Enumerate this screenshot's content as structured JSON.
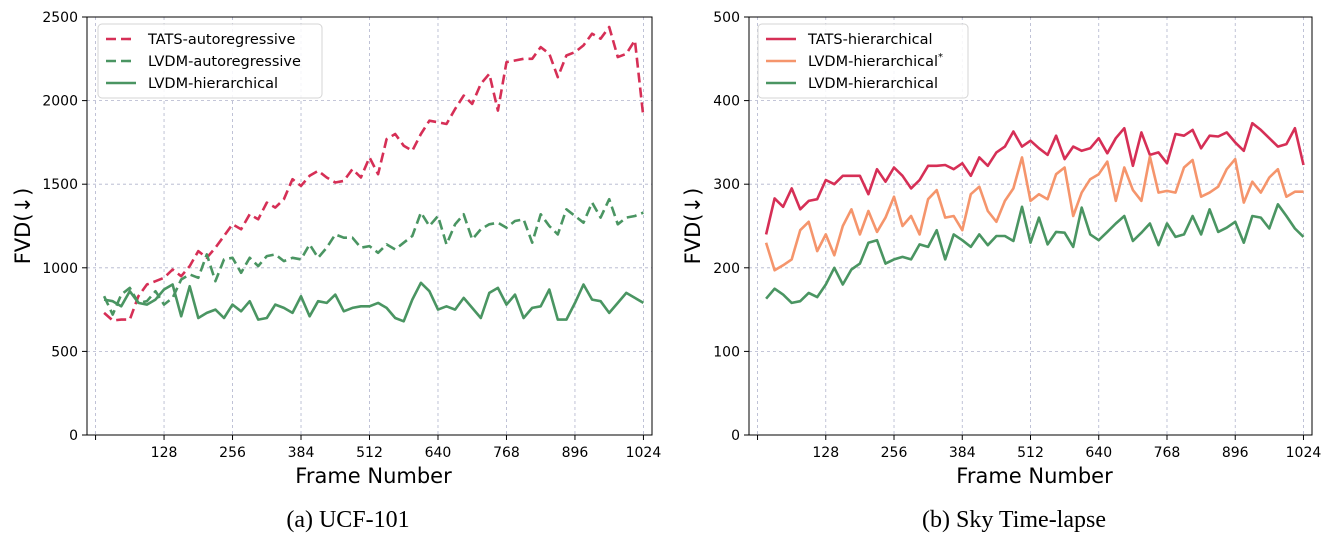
{
  "chart_data": [
    {
      "type": "line",
      "caption": "(a) UCF-101",
      "xlabel": "Frame Number",
      "ylabel": "FVD(↓)",
      "xlim": [
        -16,
        1040
      ],
      "ylim": [
        0,
        2500
      ],
      "xticks": [
        128,
        256,
        384,
        512,
        640,
        768,
        896,
        1024
      ],
      "yticks": [
        0,
        500,
        1000,
        1500,
        2000,
        2500
      ],
      "grid": true,
      "legend_position": "top-left",
      "x": [
        16,
        32,
        48,
        64,
        80,
        96,
        112,
        128,
        144,
        160,
        176,
        192,
        208,
        224,
        240,
        256,
        272,
        288,
        304,
        320,
        336,
        352,
        368,
        384,
        400,
        416,
        432,
        448,
        464,
        480,
        496,
        512,
        528,
        544,
        560,
        576,
        592,
        608,
        624,
        640,
        656,
        672,
        688,
        704,
        720,
        736,
        752,
        768,
        784,
        800,
        816,
        832,
        848,
        864,
        880,
        896,
        912,
        928,
        944,
        960,
        976,
        992,
        1008,
        1024
      ],
      "series": [
        {
          "name": "TATS-autoregressive",
          "color": "#d62f56",
          "dash": "dashed",
          "values": [
            730,
            685,
            690,
            690,
            830,
            900,
            920,
            940,
            990,
            950,
            1010,
            1100,
            1060,
            1120,
            1190,
            1260,
            1230,
            1320,
            1290,
            1390,
            1360,
            1410,
            1530,
            1490,
            1550,
            1580,
            1540,
            1510,
            1520,
            1590,
            1540,
            1660,
            1560,
            1770,
            1800,
            1730,
            1700,
            1800,
            1880,
            1870,
            1860,
            1950,
            2030,
            1980,
            2100,
            2160,
            1940,
            2230,
            2240,
            2250,
            2250,
            2320,
            2280,
            2140,
            2270,
            2290,
            2330,
            2400,
            2370,
            2440,
            2260,
            2280,
            2360,
            1900
          ]
        },
        {
          "name": "LVDM-autoregressive",
          "color": "#4a9562",
          "dash": "dashed",
          "values": [
            830,
            720,
            840,
            880,
            790,
            800,
            860,
            780,
            820,
            930,
            960,
            940,
            1080,
            920,
            1050,
            1060,
            970,
            1060,
            1010,
            1070,
            1080,
            1040,
            1060,
            1050,
            1140,
            1060,
            1120,
            1200,
            1180,
            1180,
            1120,
            1130,
            1090,
            1140,
            1110,
            1150,
            1190,
            1330,
            1250,
            1310,
            1140,
            1260,
            1320,
            1170,
            1230,
            1260,
            1270,
            1240,
            1280,
            1290,
            1150,
            1320,
            1250,
            1200,
            1350,
            1310,
            1270,
            1390,
            1300,
            1410,
            1260,
            1300,
            1310,
            1330
          ]
        },
        {
          "name": "LVDM-hierarchical",
          "color": "#4a9562",
          "dash": "solid",
          "values": [
            810,
            800,
            770,
            860,
            790,
            780,
            810,
            870,
            900,
            710,
            890,
            700,
            730,
            750,
            700,
            780,
            740,
            800,
            690,
            700,
            780,
            760,
            730,
            830,
            710,
            800,
            790,
            840,
            740,
            760,
            770,
            770,
            790,
            760,
            700,
            680,
            810,
            910,
            860,
            750,
            770,
            750,
            820,
            760,
            700,
            850,
            880,
            780,
            840,
            700,
            760,
            770,
            870,
            690,
            690,
            790,
            900,
            810,
            800,
            730,
            790,
            850,
            820,
            790
          ]
        }
      ]
    },
    {
      "type": "line",
      "caption": "(b) Sky Time-lapse",
      "xlabel": "Frame Number",
      "ylabel": "FVD(↓)",
      "xlim": [
        -16,
        1040
      ],
      "ylim": [
        0,
        500
      ],
      "xticks": [
        128,
        256,
        384,
        512,
        640,
        768,
        896,
        1024
      ],
      "yticks": [
        0,
        100,
        200,
        300,
        400,
        500
      ],
      "grid": true,
      "legend_position": "top-left",
      "x": [
        16,
        32,
        48,
        64,
        80,
        96,
        112,
        128,
        144,
        160,
        176,
        192,
        208,
        224,
        240,
        256,
        272,
        288,
        304,
        320,
        336,
        352,
        368,
        384,
        400,
        416,
        432,
        448,
        464,
        480,
        496,
        512,
        528,
        544,
        560,
        576,
        592,
        608,
        624,
        640,
        656,
        672,
        688,
        704,
        720,
        736,
        752,
        768,
        784,
        800,
        816,
        832,
        848,
        864,
        880,
        896,
        912,
        928,
        944,
        960,
        976,
        992,
        1008,
        1024
      ],
      "series": [
        {
          "name": "TATS-hierarchical",
          "color": "#d62f56",
          "dash": "solid",
          "values": [
            240,
            283,
            273,
            295,
            270,
            280,
            282,
            305,
            300,
            310,
            310,
            310,
            288,
            318,
            303,
            320,
            310,
            295,
            305,
            322,
            322,
            323,
            318,
            325,
            310,
            332,
            322,
            338,
            345,
            363,
            345,
            352,
            343,
            335,
            358,
            330,
            345,
            340,
            343,
            355,
            337,
            355,
            367,
            322,
            362,
            335,
            338,
            325,
            360,
            358,
            365,
            343,
            358,
            357,
            362,
            350,
            340,
            373,
            365,
            355,
            345,
            348,
            367,
            323
          ]
        },
        {
          "name": "LVDM-hierarchical",
          "name_superscript": "*",
          "color": "#f5956c",
          "dash": "solid",
          "values": [
            230,
            197,
            203,
            210,
            245,
            255,
            220,
            240,
            215,
            250,
            270,
            240,
            268,
            243,
            260,
            285,
            250,
            262,
            240,
            282,
            293,
            260,
            262,
            245,
            288,
            297,
            268,
            255,
            280,
            295,
            332,
            280,
            288,
            282,
            312,
            320,
            262,
            290,
            306,
            312,
            327,
            280,
            320,
            293,
            280,
            333,
            290,
            292,
            290,
            320,
            329,
            285,
            290,
            297,
            318,
            330,
            278,
            303,
            290,
            308,
            318,
            285,
            291,
            291
          ]
        },
        {
          "name": "LVDM-hierarchical",
          "color": "#4a9562",
          "dash": "solid",
          "values": [
            163,
            175,
            168,
            158,
            160,
            170,
            165,
            180,
            200,
            180,
            198,
            205,
            230,
            233,
            205,
            210,
            213,
            210,
            228,
            225,
            245,
            210,
            240,
            233,
            225,
            240,
            227,
            238,
            238,
            232,
            273,
            230,
            260,
            228,
            243,
            242,
            225,
            272,
            240,
            233,
            243,
            253,
            262,
            232,
            242,
            253,
            227,
            253,
            237,
            240,
            262,
            240,
            270,
            243,
            248,
            255,
            230,
            262,
            260,
            247,
            276,
            262,
            247,
            237
          ]
        }
      ]
    }
  ]
}
